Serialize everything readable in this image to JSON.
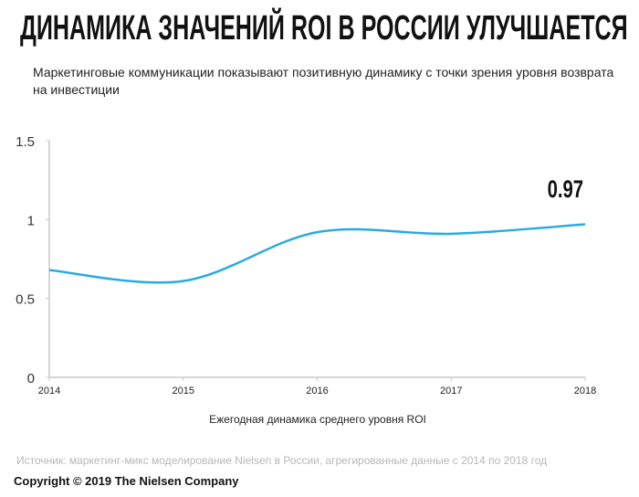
{
  "title": "ДИНАМИКА ЗНАЧЕНИЙ ROI В РОССИИ УЛУЧШАЕТСЯ",
  "subtitle": "Маркетинговые коммуникации показывают позитивную динамику с точки зрения уровня возврата на инвестиции",
  "source": "Источник: маркетинг-микс моделирование Nielsen в России, агрегированные данные с 2014 по 2018 год",
  "copyright": "Copyright © 2019 The Nielsen Company",
  "chart_data": {
    "type": "line",
    "title": "",
    "xlabel": "Ежегодная динамика среднего уровня ROI",
    "ylabel": "",
    "x": [
      "2014",
      "2015",
      "2016",
      "2017",
      "2018"
    ],
    "series": [
      {
        "name": "ROI",
        "values": [
          0.68,
          0.61,
          0.92,
          0.91,
          0.97
        ],
        "color": "#29abe2"
      }
    ],
    "yticks": [
      "0",
      "0.5",
      "1",
      "1.5"
    ],
    "ylim": [
      0,
      1.5
    ],
    "grid": false,
    "annotation": "0.97"
  }
}
